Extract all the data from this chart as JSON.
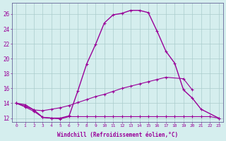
{
  "xlabel": "Windchill (Refroidissement éolien,°C)",
  "x": [
    0,
    1,
    2,
    3,
    4,
    5,
    6,
    7,
    8,
    9,
    10,
    11,
    12,
    13,
    14,
    15,
    16,
    17,
    18,
    19,
    20,
    21,
    22,
    23
  ],
  "line_arc": [
    14.0,
    13.8,
    13.1,
    12.1,
    12.0,
    12.0,
    12.3,
    15.7,
    19.3,
    21.9,
    24.8,
    25.9,
    26.1,
    26.5,
    26.5,
    26.2,
    23.7,
    21.0,
    19.4,
    15.8,
    14.7,
    13.2,
    null,
    12.0
  ],
  "line_mid": [
    14.0,
    13.6,
    13.1,
    13.0,
    13.2,
    13.4,
    13.7,
    14.1,
    14.5,
    14.9,
    15.2,
    15.6,
    16.0,
    16.3,
    16.6,
    16.9,
    17.2,
    17.5,
    null,
    17.3,
    15.8,
    null,
    null,
    null
  ],
  "line_flat": [
    14.0,
    13.5,
    12.9,
    12.1,
    12.0,
    11.9,
    12.2,
    12.2,
    12.2,
    12.2,
    12.2,
    12.2,
    12.2,
    12.2,
    12.2,
    12.2,
    12.2,
    12.2,
    12.2,
    12.2,
    12.2,
    12.2,
    12.2,
    12.0
  ],
  "ylim": [
    11.5,
    27.5
  ],
  "xlim": [
    -0.5,
    23.5
  ],
  "yticks": [
    12,
    14,
    16,
    18,
    20,
    22,
    24,
    26
  ],
  "xticks": [
    0,
    1,
    2,
    3,
    4,
    5,
    6,
    7,
    8,
    9,
    10,
    11,
    12,
    13,
    14,
    15,
    16,
    17,
    18,
    19,
    20,
    21,
    22,
    23
  ],
  "background_color": "#d5eeee",
  "grid_color": "#aacccc",
  "line_color": "#990099"
}
